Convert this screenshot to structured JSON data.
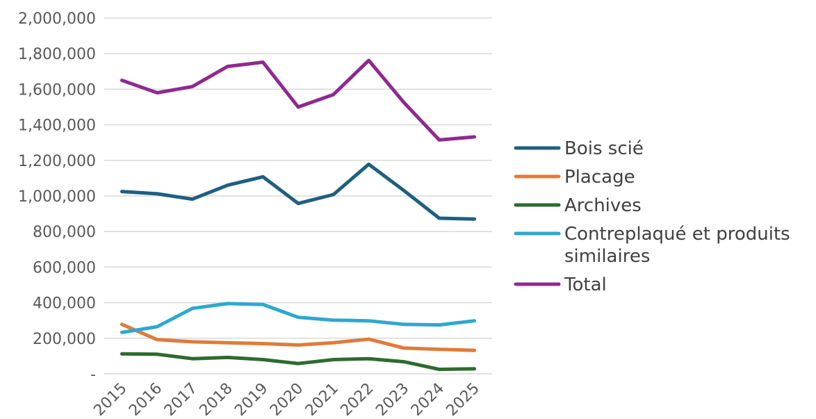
{
  "chart_data": {
    "type": "line",
    "title": "",
    "xlabel": "",
    "ylabel": "",
    "categories": [
      "2015",
      "2016",
      "2017",
      "2018",
      "2019",
      "2020",
      "2021",
      "2022",
      "2023",
      "2024",
      "2025"
    ],
    "ylim": [
      0,
      2000000
    ],
    "yticks": [
      0,
      200000,
      400000,
      600000,
      800000,
      1000000,
      1200000,
      1400000,
      1600000,
      1800000,
      2000000
    ],
    "ytick_labels": [
      "-",
      "200,000",
      "400,000",
      "600,000",
      "800,000",
      "1,000,000",
      "1,200,000",
      "1,400,000",
      "1,600,000",
      "1,800,000",
      "2,000,000"
    ],
    "grid": true,
    "legend_position": "right",
    "series": [
      {
        "name": "Bois scié",
        "color": "#1f5f7f",
        "values": [
          1025000,
          1012000,
          982000,
          1060000,
          1108000,
          958000,
          1008000,
          1178000,
          1030000,
          875000,
          870000
        ]
      },
      {
        "name": "Placage",
        "color": "#e07b39",
        "values": [
          278000,
          192000,
          180000,
          175000,
          170000,
          162000,
          175000,
          195000,
          145000,
          138000,
          132000
        ]
      },
      {
        "name": "Archives",
        "color": "#2e6b2e",
        "values": [
          112000,
          110000,
          85000,
          92000,
          80000,
          58000,
          80000,
          85000,
          68000,
          25000,
          28000
        ]
      },
      {
        "name": "Contreplaqué et produits similaires",
        "name_lines": [
          "Contreplaqué et produits",
          "similaires"
        ],
        "color": "#2ea8d1",
        "values": [
          233000,
          265000,
          368000,
          395000,
          390000,
          318000,
          302000,
          298000,
          278000,
          275000,
          298000
        ]
      },
      {
        "name": "Total",
        "color": "#8e2a8e",
        "values": [
          1650000,
          1580000,
          1615000,
          1728000,
          1752000,
          1500000,
          1570000,
          1762000,
          1525000,
          1315000,
          1332000
        ]
      }
    ]
  }
}
